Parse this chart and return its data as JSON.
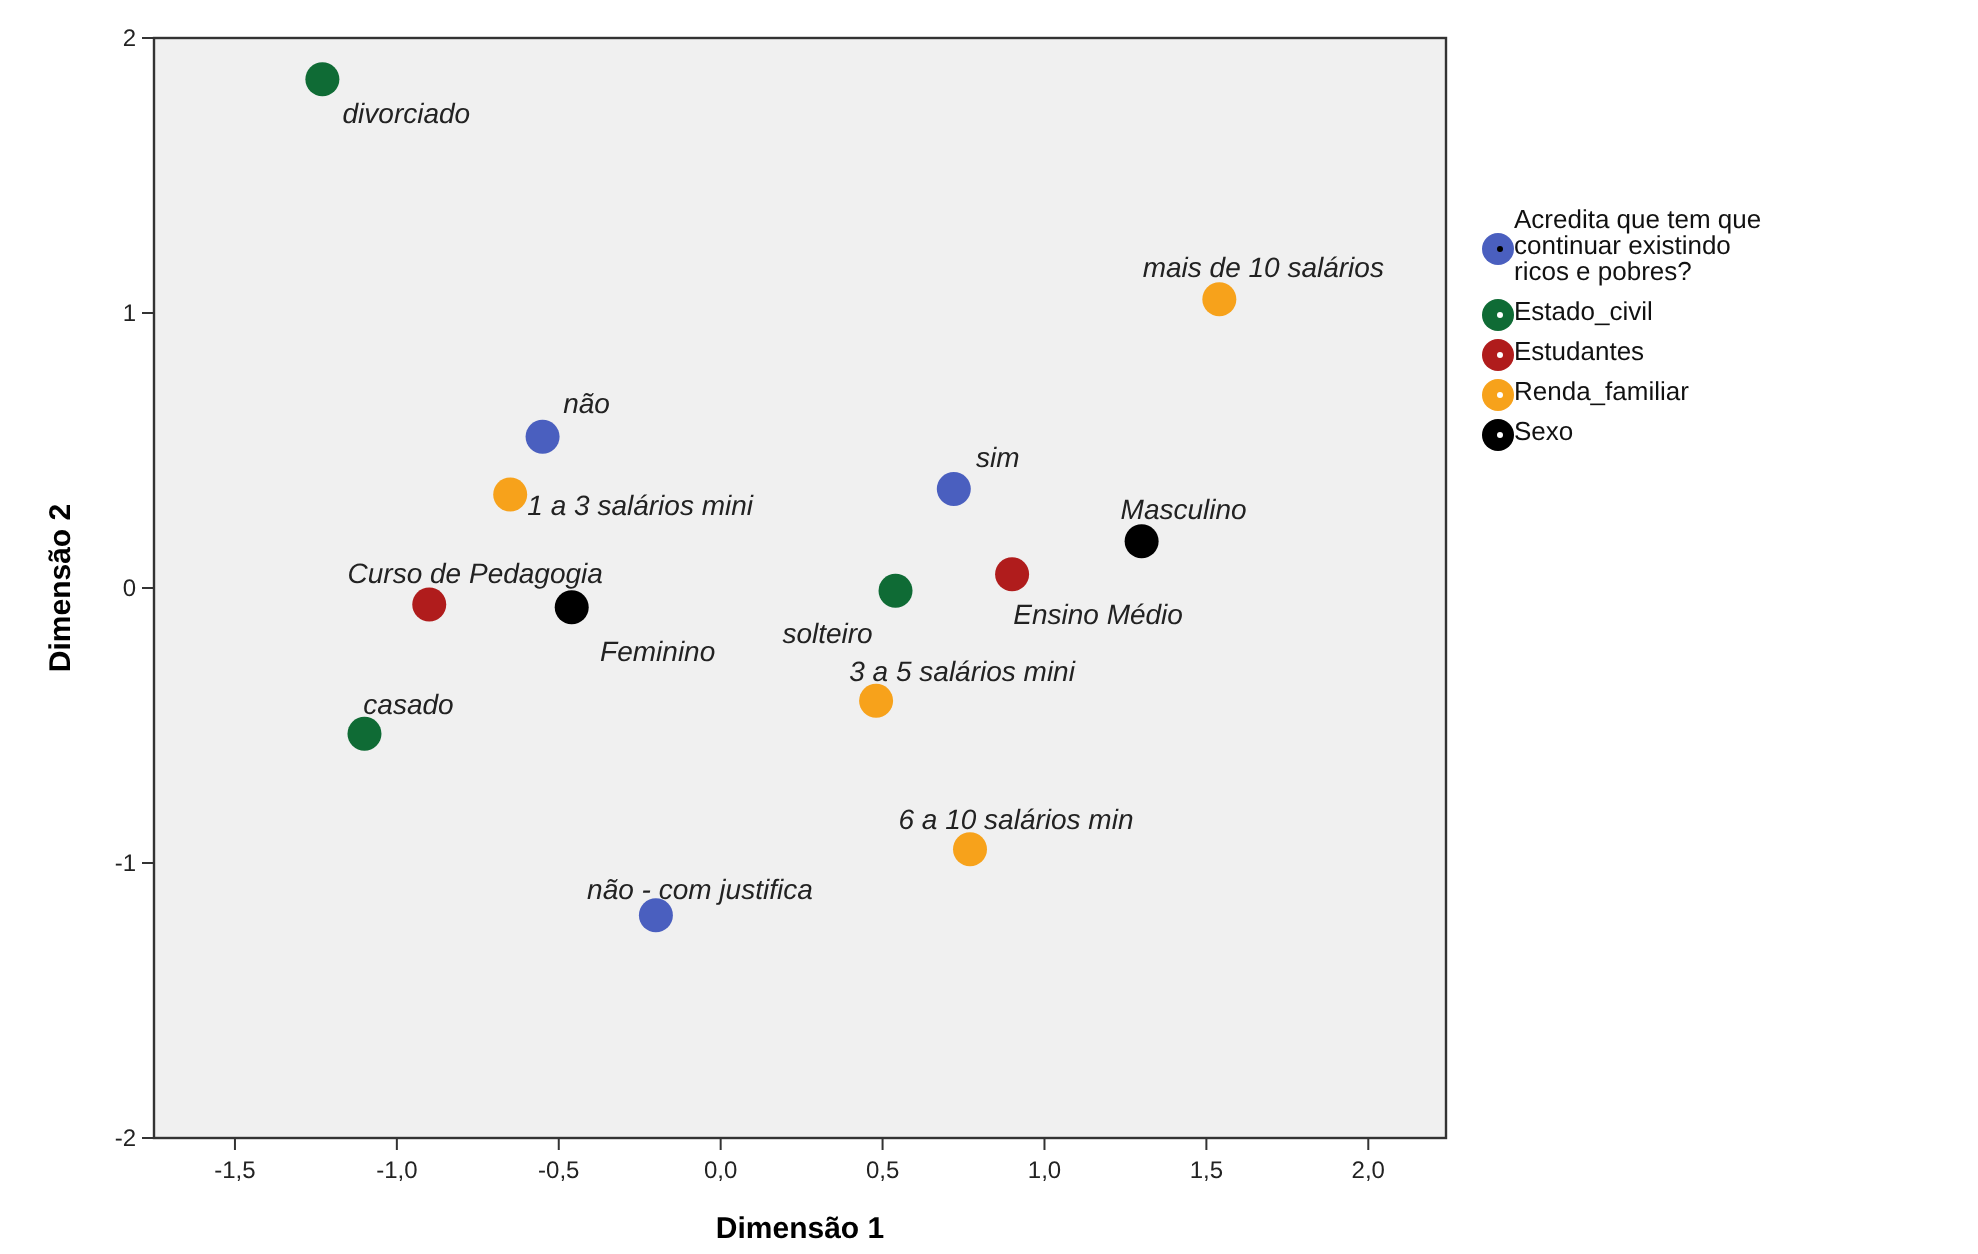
{
  "chart_data": {
    "type": "scatter",
    "xlabel": "Dimensão 1",
    "ylabel": "Dimensão 2",
    "xlim": [
      -1.75,
      2.24
    ],
    "ylim": [
      -2,
      2
    ],
    "xticks": [
      {
        "value": -1.5,
        "label": "-1,5"
      },
      {
        "value": -1,
        "label": "-1,0"
      },
      {
        "value": -0.5,
        "label": "-0,5"
      },
      {
        "value": 0,
        "label": "0,0"
      },
      {
        "value": 0.5,
        "label": "0,5"
      },
      {
        "value": 1,
        "label": "1,0"
      },
      {
        "value": 1.5,
        "label": "1,5"
      },
      {
        "value": 2,
        "label": "2,0"
      }
    ],
    "yticks": [
      -2,
      -1,
      0,
      1,
      2
    ],
    "grid": false,
    "legend": "right",
    "marker": "circle",
    "series": [
      {
        "name": "Acredita que tem que continuar existindo ricos e pobres?",
        "color": "#4a5fbf",
        "x": [
          -0.55,
          0.72,
          -0.2
        ],
        "values": [
          0.55,
          0.36,
          -1.19
        ]
      },
      {
        "name": "Estado_civil",
        "color": "#0f6b35",
        "x": [
          -1.23,
          0.54,
          -1.1
        ],
        "values": [
          1.85,
          -0.01,
          -0.53
        ]
      },
      {
        "name": "Estudantes",
        "color": "#b01c1c",
        "x": [
          -0.9,
          0.9
        ],
        "values": [
          -0.06,
          0.05
        ]
      },
      {
        "name": "Renda_familiar",
        "color": "#f7a21b",
        "x": [
          1.54,
          -0.65,
          0.48,
          0.77
        ],
        "values": [
          1.05,
          0.34,
          -0.41,
          -0.95
        ]
      },
      {
        "name": "Sexo",
        "color": "#000000",
        "x": [
          1.3,
          -0.46
        ],
        "values": [
          0.17,
          -0.07
        ]
      }
    ],
    "annotations": [
      {
        "text": "não",
        "x": -0.55,
        "y": 0.55
      },
      {
        "text": "sim",
        "x": 0.72,
        "y": 0.36
      },
      {
        "text": "não - com justifica",
        "x": -0.2,
        "y": -1.19
      },
      {
        "text": "divorciado",
        "x": -1.23,
        "y": 1.85
      },
      {
        "text": "solteiro",
        "x": 0.54,
        "y": -0.01
      },
      {
        "text": "casado",
        "x": -1.1,
        "y": -0.53
      },
      {
        "text": "Curso de Pedagogia",
        "x": -0.9,
        "y": -0.06
      },
      {
        "text": "Ensino Médio",
        "x": 0.9,
        "y": 0.05
      },
      {
        "text": "mais de 10 salários",
        "x": 1.54,
        "y": 1.05
      },
      {
        "text": "1 a 3 salários mini",
        "x": -0.65,
        "y": 0.34
      },
      {
        "text": "3 a 5 salários mini",
        "x": 0.48,
        "y": -0.41
      },
      {
        "text": "6 a 10 salários min",
        "x": 0.77,
        "y": -0.95
      },
      {
        "text": "Masculino",
        "x": 1.3,
        "y": 0.17
      },
      {
        "text": "Feminino",
        "x": -0.46,
        "y": -0.07
      }
    ]
  }
}
